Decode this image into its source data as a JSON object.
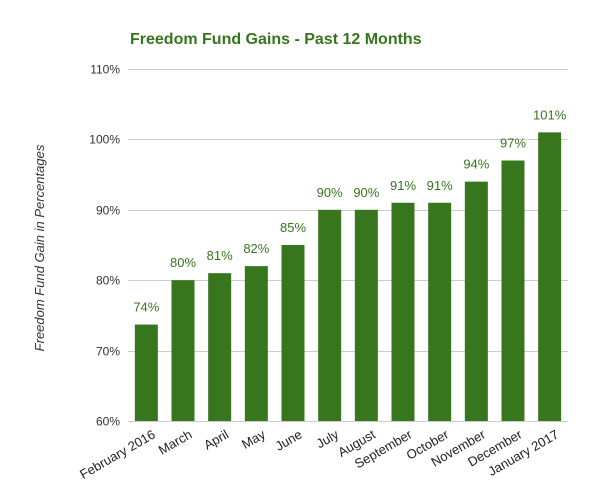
{
  "chart_data": {
    "type": "bar",
    "title": "Freedom Fund Gains - Past 12 Months",
    "xlabel": "",
    "ylabel": "Freedom Fund Gain in Percentages",
    "categories": [
      "February 2016",
      "March",
      "April",
      "May",
      "June",
      "July",
      "August",
      "September",
      "October",
      "November",
      "December",
      "January 2017"
    ],
    "values": [
      73.7,
      80,
      81,
      82,
      85,
      90,
      90,
      91,
      91,
      94,
      97,
      101
    ],
    "data_labels": [
      "74%",
      "80%",
      "81%",
      "82%",
      "85%",
      "90%",
      "90%",
      "91%",
      "91%",
      "94%",
      "97%",
      "101%"
    ],
    "ylim": [
      60,
      110
    ],
    "yticks": [
      60,
      70,
      80,
      90,
      100,
      110
    ],
    "ytick_labels": [
      "60%",
      "70%",
      "80%",
      "90%",
      "100%",
      "110%"
    ],
    "grid": true,
    "legend": "none",
    "bar_color": "#38761d",
    "label_color": "#38761d"
  }
}
